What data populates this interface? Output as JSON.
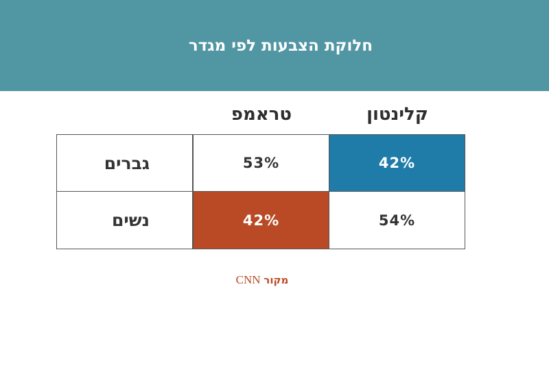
{
  "chart_data": {
    "type": "table",
    "title": "חלוקת הצבעות לפי מגדר",
    "columns": [
      "קלינטון",
      "טראמפ"
    ],
    "rows": [
      {
        "label": "גברים",
        "values": [
          "42%",
          "53%"
        ]
      },
      {
        "label": "נשים",
        "values": [
          "54%",
          "42%"
        ]
      }
    ],
    "highlight": {
      "clinton_men": "#1f7ca8",
      "trump_women": "#b94a25"
    },
    "source_word": "מקור",
    "source_name": "CNN"
  }
}
